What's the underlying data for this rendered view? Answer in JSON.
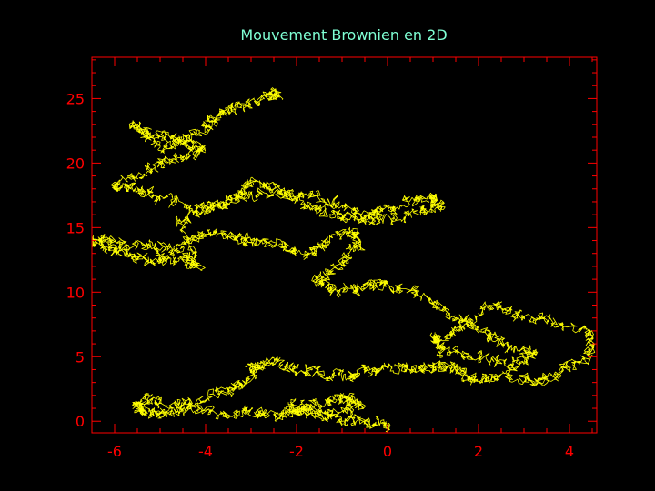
{
  "chart_data": {
    "type": "line",
    "title": "Mouvement Brownien en 2D",
    "xlabel": "",
    "ylabel": "",
    "xlim": [
      -6.5,
      4.6
    ],
    "ylim": [
      -0.9,
      28.2
    ],
    "xticks": [
      -6,
      -4,
      -2,
      0,
      2,
      4
    ],
    "yticks": [
      0,
      5,
      10,
      15,
      20,
      25
    ],
    "grid": false,
    "colors": {
      "background": "#000000",
      "axes": "#ff0000",
      "line": "#ffff00",
      "title": "#7fffd4"
    },
    "series": [
      {
        "x": [
          0.0,
          -0.4,
          -1.0,
          -1.8,
          -2.2,
          -1.4,
          -0.9,
          -0.6,
          -1.2,
          -1.8,
          -2.4,
          -3.0,
          -3.6,
          -4.4,
          -5.0,
          -5.4,
          -5.5,
          -5.2,
          -4.4,
          -3.6,
          -3.1,
          -3.0,
          -2.6,
          -2.0,
          -1.4,
          -0.8,
          -0.3,
          0.3,
          0.8,
          1.2,
          1.6,
          2.0,
          2.6,
          3.2,
          3.8,
          4.4,
          4.5,
          3.6,
          2.8,
          2.2,
          1.6,
          1.0,
          1.2,
          2.0,
          2.8,
          3.2,
          2.6,
          2.0,
          1.3,
          0.6,
          -0.1,
          -0.6,
          -1.2,
          -1.6,
          -1.0,
          -0.6,
          -0.8,
          -1.4,
          -1.8,
          -2.4,
          -3.0,
          -3.4,
          -4.0,
          -4.6,
          -5.2,
          -6.0,
          -6.5,
          -6.0,
          -5.6,
          -5.0,
          -4.4,
          -4.1,
          -4.6,
          -4.0,
          -3.4,
          -3.0,
          -2.4,
          -1.8,
          -1.2,
          -0.6,
          -0.2,
          0.4,
          1.0,
          1.2,
          0.6,
          -0.2,
          -1.0,
          -1.8,
          -2.6,
          -3.4,
          -4.2,
          -5.0,
          -5.6,
          -6.0,
          -5.2,
          -4.6,
          -4.0,
          -4.6,
          -5.2,
          -5.6,
          -5.0,
          -4.5,
          -4.0,
          -3.7,
          -3.2,
          -2.6,
          -2.4
        ],
        "y": [
          -0.4,
          0.0,
          0.2,
          0.5,
          1.0,
          1.6,
          1.8,
          1.2,
          0.6,
          1.0,
          0.3,
          0.7,
          0.5,
          1.0,
          0.5,
          0.8,
          1.4,
          1.6,
          1.4,
          2.2,
          3.2,
          4.2,
          4.7,
          4.0,
          3.6,
          3.5,
          4.0,
          4.3,
          4.0,
          4.4,
          3.8,
          3.2,
          3.5,
          3.0,
          3.8,
          5.0,
          6.8,
          7.8,
          8.3,
          9.0,
          7.0,
          6.5,
          5.5,
          5.0,
          4.3,
          5.2,
          6.0,
          7.2,
          8.5,
          10.0,
          10.6,
          10.4,
          10.2,
          11.0,
          12.2,
          13.5,
          14.8,
          13.6,
          12.8,
          13.6,
          13.9,
          14.3,
          14.8,
          13.4,
          13.6,
          13.8,
          14.1,
          13.4,
          12.8,
          12.4,
          12.6,
          12.0,
          15.4,
          16.4,
          17.2,
          18.6,
          18.0,
          16.8,
          16.0,
          15.6,
          16.2,
          17.0,
          17.5,
          16.6,
          16.0,
          15.5,
          16.8,
          17.4,
          17.8,
          17.0,
          16.5,
          17.4,
          18.0,
          18.2,
          19.6,
          20.4,
          21.0,
          21.8,
          22.2,
          22.9,
          21.2,
          21.6,
          22.8,
          23.8,
          24.5,
          25.2,
          25.3
        ]
      }
    ]
  }
}
